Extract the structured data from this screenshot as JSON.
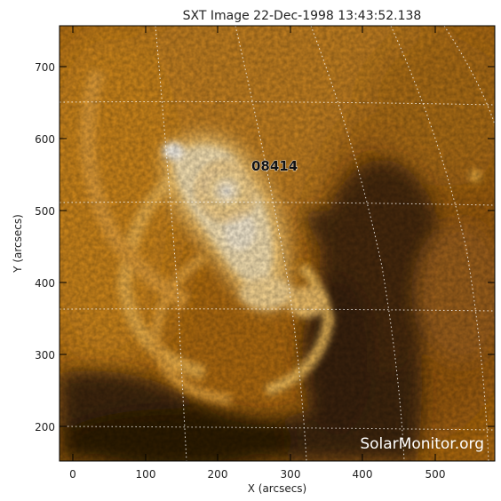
{
  "title": "SXT Image 22-Dec-1998 13:43:52.138",
  "x_axis": {
    "label": "X (arcsecs)",
    "ticks": [
      "0",
      "100",
      "200",
      "300",
      "400",
      "500"
    ]
  },
  "y_axis": {
    "label": "Y (arcsecs)",
    "ticks": [
      "700",
      "600",
      "500",
      "400",
      "300",
      "200"
    ]
  },
  "region_label": "08414",
  "watermark": "SolarMonitor.org",
  "colors": {
    "frame": "#000000",
    "background_dark": "#3a2208",
    "corona_mid": "#c47a12",
    "corona_bright": "#ffe8b8",
    "grid": "#ffffff"
  }
}
